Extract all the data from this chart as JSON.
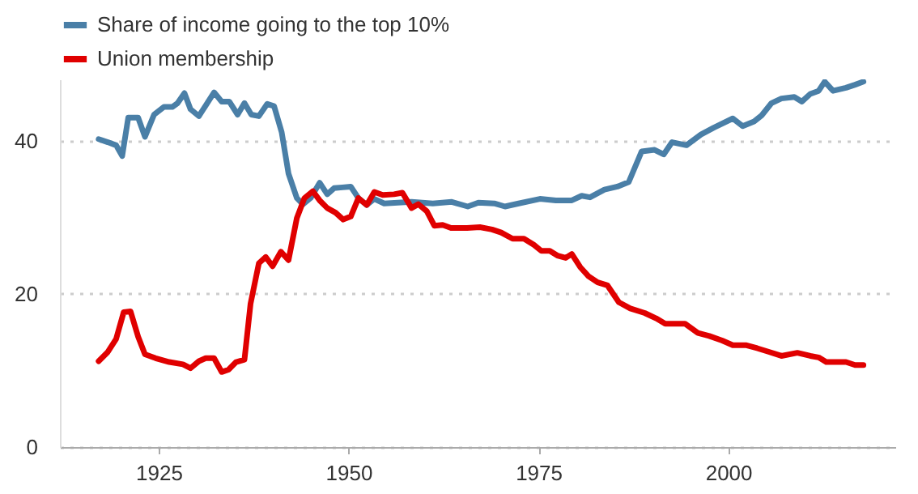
{
  "chart_data": {
    "type": "line",
    "series": [
      {
        "name": "Share of income going to the top 10%",
        "color": "#4a7fa7",
        "x": [
          1917.1,
          1918.3,
          1919.4,
          1920.2,
          1921,
          1922.3,
          1923.2,
          1924.4,
          1925.7,
          1926.8,
          1927.5,
          1928.4,
          1929.2,
          1930.3,
          1931.4,
          1932.3,
          1933.3,
          1934.3,
          1935.4,
          1936.3,
          1937.2,
          1938.2,
          1939.3,
          1940.2,
          1941.2,
          1942.1,
          1943.2,
          1944,
          1945,
          1946.2,
          1947.2,
          1948.1,
          1949.2,
          1950.3,
          1951.3,
          1952.4,
          1953.4,
          1954.7,
          1958.3,
          1961.1,
          1963.6,
          1965.7,
          1967.1,
          1969.2,
          1970.6,
          1972.4,
          1975.2,
          1977.3,
          1979.4,
          1980.7,
          1981.8,
          1983.7,
          1985.4,
          1986.9,
          1988.6,
          1990.3,
          1991.5,
          1992.6,
          1994.5,
          1996.4,
          1998.1,
          2000.6,
          2001.9,
          2003.4,
          2004.4,
          2005.7,
          2007,
          2008.7,
          2009.7,
          2010.8,
          2011.9,
          2012.7,
          2013.8,
          2015.5,
          2016.7,
          2017.8
        ],
        "values": [
          40.2,
          39.8,
          39.4,
          38,
          43,
          43,
          40.5,
          43.4,
          44.4,
          44.4,
          44.9,
          46.2,
          44.1,
          43.2,
          44.9,
          46.3,
          45.1,
          45.1,
          43.4,
          44.9,
          43.4,
          43.2,
          44.8,
          44.5,
          41.1,
          35.7,
          32.5,
          31.7,
          32.5,
          34.5,
          33,
          33.8,
          33.9,
          34,
          32.5,
          31.6,
          32.4,
          31.8,
          32,
          31.8,
          32,
          31.4,
          31.9,
          31.8,
          31.4,
          31.8,
          32.4,
          32.2,
          32.2,
          32.8,
          32.6,
          33.6,
          34,
          34.6,
          38.6,
          38.8,
          38.2,
          39.8,
          39.4,
          40.8,
          41.7,
          42.9,
          41.9,
          42.5,
          43.3,
          44.9,
          45.5,
          45.7,
          45.1,
          46.1,
          46.5,
          47.7,
          46.5,
          46.9,
          47.3,
          47.7
        ]
      },
      {
        "name": "Union membership",
        "color": "#e00000",
        "x": [
          1917.1,
          1918.3,
          1919.4,
          1920.4,
          1921.3,
          1922.3,
          1923.2,
          1924.6,
          1926.4,
          1928.2,
          1929.2,
          1930.3,
          1931.2,
          1932.3,
          1933.3,
          1934.2,
          1935.2,
          1936.3,
          1937.1,
          1938.2,
          1939.1,
          1940,
          1941.1,
          1942.1,
          1943.2,
          1944.2,
          1945.3,
          1946.2,
          1947.2,
          1948.3,
          1949.3,
          1950.3,
          1951.3,
          1952.4,
          1953.4,
          1954.5,
          1956,
          1957.1,
          1958.3,
          1959.2,
          1960.3,
          1961.3,
          1962.4,
          1963.5,
          1965.6,
          1967.3,
          1968.9,
          1970.1,
          1971.6,
          1973.1,
          1974.4,
          1975.4,
          1976.5,
          1977.5,
          1978.6,
          1979.4,
          1980.5,
          1981.6,
          1982.8,
          1984.1,
          1985.6,
          1987.1,
          1989,
          1990.5,
          1991.7,
          1994.3,
          1996,
          1997.5,
          1999.2,
          2000.6,
          2002.3,
          2003.8,
          2005.1,
          2007,
          2009.1,
          2010.8,
          2011.9,
          2012.9,
          2015.5,
          2016.7,
          2017.8
        ],
        "values": [
          11.2,
          12.4,
          14.1,
          17.6,
          17.7,
          14.4,
          12.1,
          11.6,
          11.1,
          10.8,
          10.3,
          11.2,
          11.6,
          11.6,
          9.8,
          10.1,
          11.1,
          11.4,
          18.7,
          24,
          24.8,
          23.6,
          25.5,
          24.4,
          29.9,
          32.5,
          33.4,
          32.2,
          31.2,
          30.6,
          29.7,
          30.1,
          32.5,
          31.6,
          33.3,
          32.9,
          33,
          33.2,
          31.2,
          31.7,
          30.8,
          28.9,
          29,
          28.6,
          28.6,
          28.7,
          28.4,
          28,
          27.2,
          27.2,
          26.4,
          25.6,
          25.6,
          25,
          24.7,
          25.2,
          23.5,
          22.3,
          21.5,
          21.1,
          18.9,
          18.1,
          17.5,
          16.8,
          16.1,
          16.1,
          14.9,
          14.5,
          13.9,
          13.3,
          13.3,
          12.9,
          12.5,
          11.9,
          12.3,
          11.9,
          11.7,
          11.1,
          11.1,
          10.7,
          10.7
        ]
      }
    ],
    "xlim": [
      1912,
      2022
    ],
    "xticks": [
      1925,
      1950,
      1975,
      2000
    ],
    "ylim": [
      0,
      48
    ],
    "yticks": [
      0,
      20,
      40
    ],
    "grid": "y",
    "legend": "top",
    "line_style": "solid"
  }
}
